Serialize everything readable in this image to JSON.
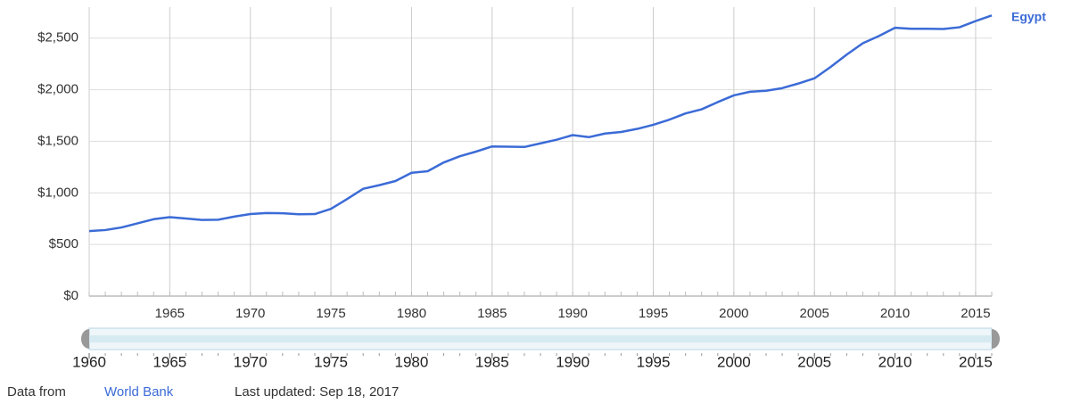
{
  "chart_data": {
    "type": "line",
    "series": [
      {
        "name": "Egypt",
        "color": "#3b6bd6",
        "values": [
          630,
          640,
          665,
          705,
          745,
          765,
          752,
          738,
          740,
          770,
          795,
          805,
          803,
          793,
          795,
          845,
          940,
          1040,
          1075,
          1115,
          1195,
          1210,
          1295,
          1355,
          1400,
          1450,
          1448,
          1445,
          1480,
          1515,
          1560,
          1540,
          1575,
          1590,
          1620,
          1660,
          1710,
          1770,
          1810,
          1880,
          1945,
          1980,
          1990,
          2015,
          2060,
          2110,
          2220,
          2340,
          2450,
          2520,
          2600,
          2590,
          2590,
          2588,
          2605,
          2665,
          2720
        ]
      }
    ],
    "x": [
      1960,
      1961,
      1962,
      1963,
      1964,
      1965,
      1966,
      1967,
      1968,
      1969,
      1970,
      1971,
      1972,
      1973,
      1974,
      1975,
      1976,
      1977,
      1978,
      1979,
      1980,
      1981,
      1982,
      1983,
      1984,
      1985,
      1986,
      1987,
      1988,
      1989,
      1990,
      1991,
      1992,
      1993,
      1994,
      1995,
      1996,
      1997,
      1998,
      1999,
      2000,
      2001,
      2002,
      2003,
      2004,
      2005,
      2006,
      2007,
      2008,
      2009,
      2010,
      2011,
      2012,
      2013,
      2014,
      2015,
      2016
    ],
    "xlim": [
      1960,
      2016
    ],
    "xticks": [
      1965,
      1970,
      1975,
      1980,
      1985,
      1990,
      1995,
      2000,
      2005,
      2010,
      2015
    ],
    "ylim": [
      0,
      2800
    ],
    "yticks": [
      {
        "value": 0,
        "label": "$0"
      },
      {
        "value": 500,
        "label": "$500"
      },
      {
        "value": 1000,
        "label": "$1,000"
      },
      {
        "value": 1500,
        "label": "$1,500"
      },
      {
        "value": 2000,
        "label": "$2,000"
      },
      {
        "value": 2500,
        "label": "$2,500"
      }
    ],
    "grid": true,
    "range_ticks": [
      1960,
      1965,
      1970,
      1975,
      1980,
      1985,
      1990,
      1995,
      2000,
      2005,
      2010,
      2015
    ],
    "source_prefix": "Data from",
    "source": "World Bank",
    "updated": "Last updated: Sep 18, 2017"
  }
}
